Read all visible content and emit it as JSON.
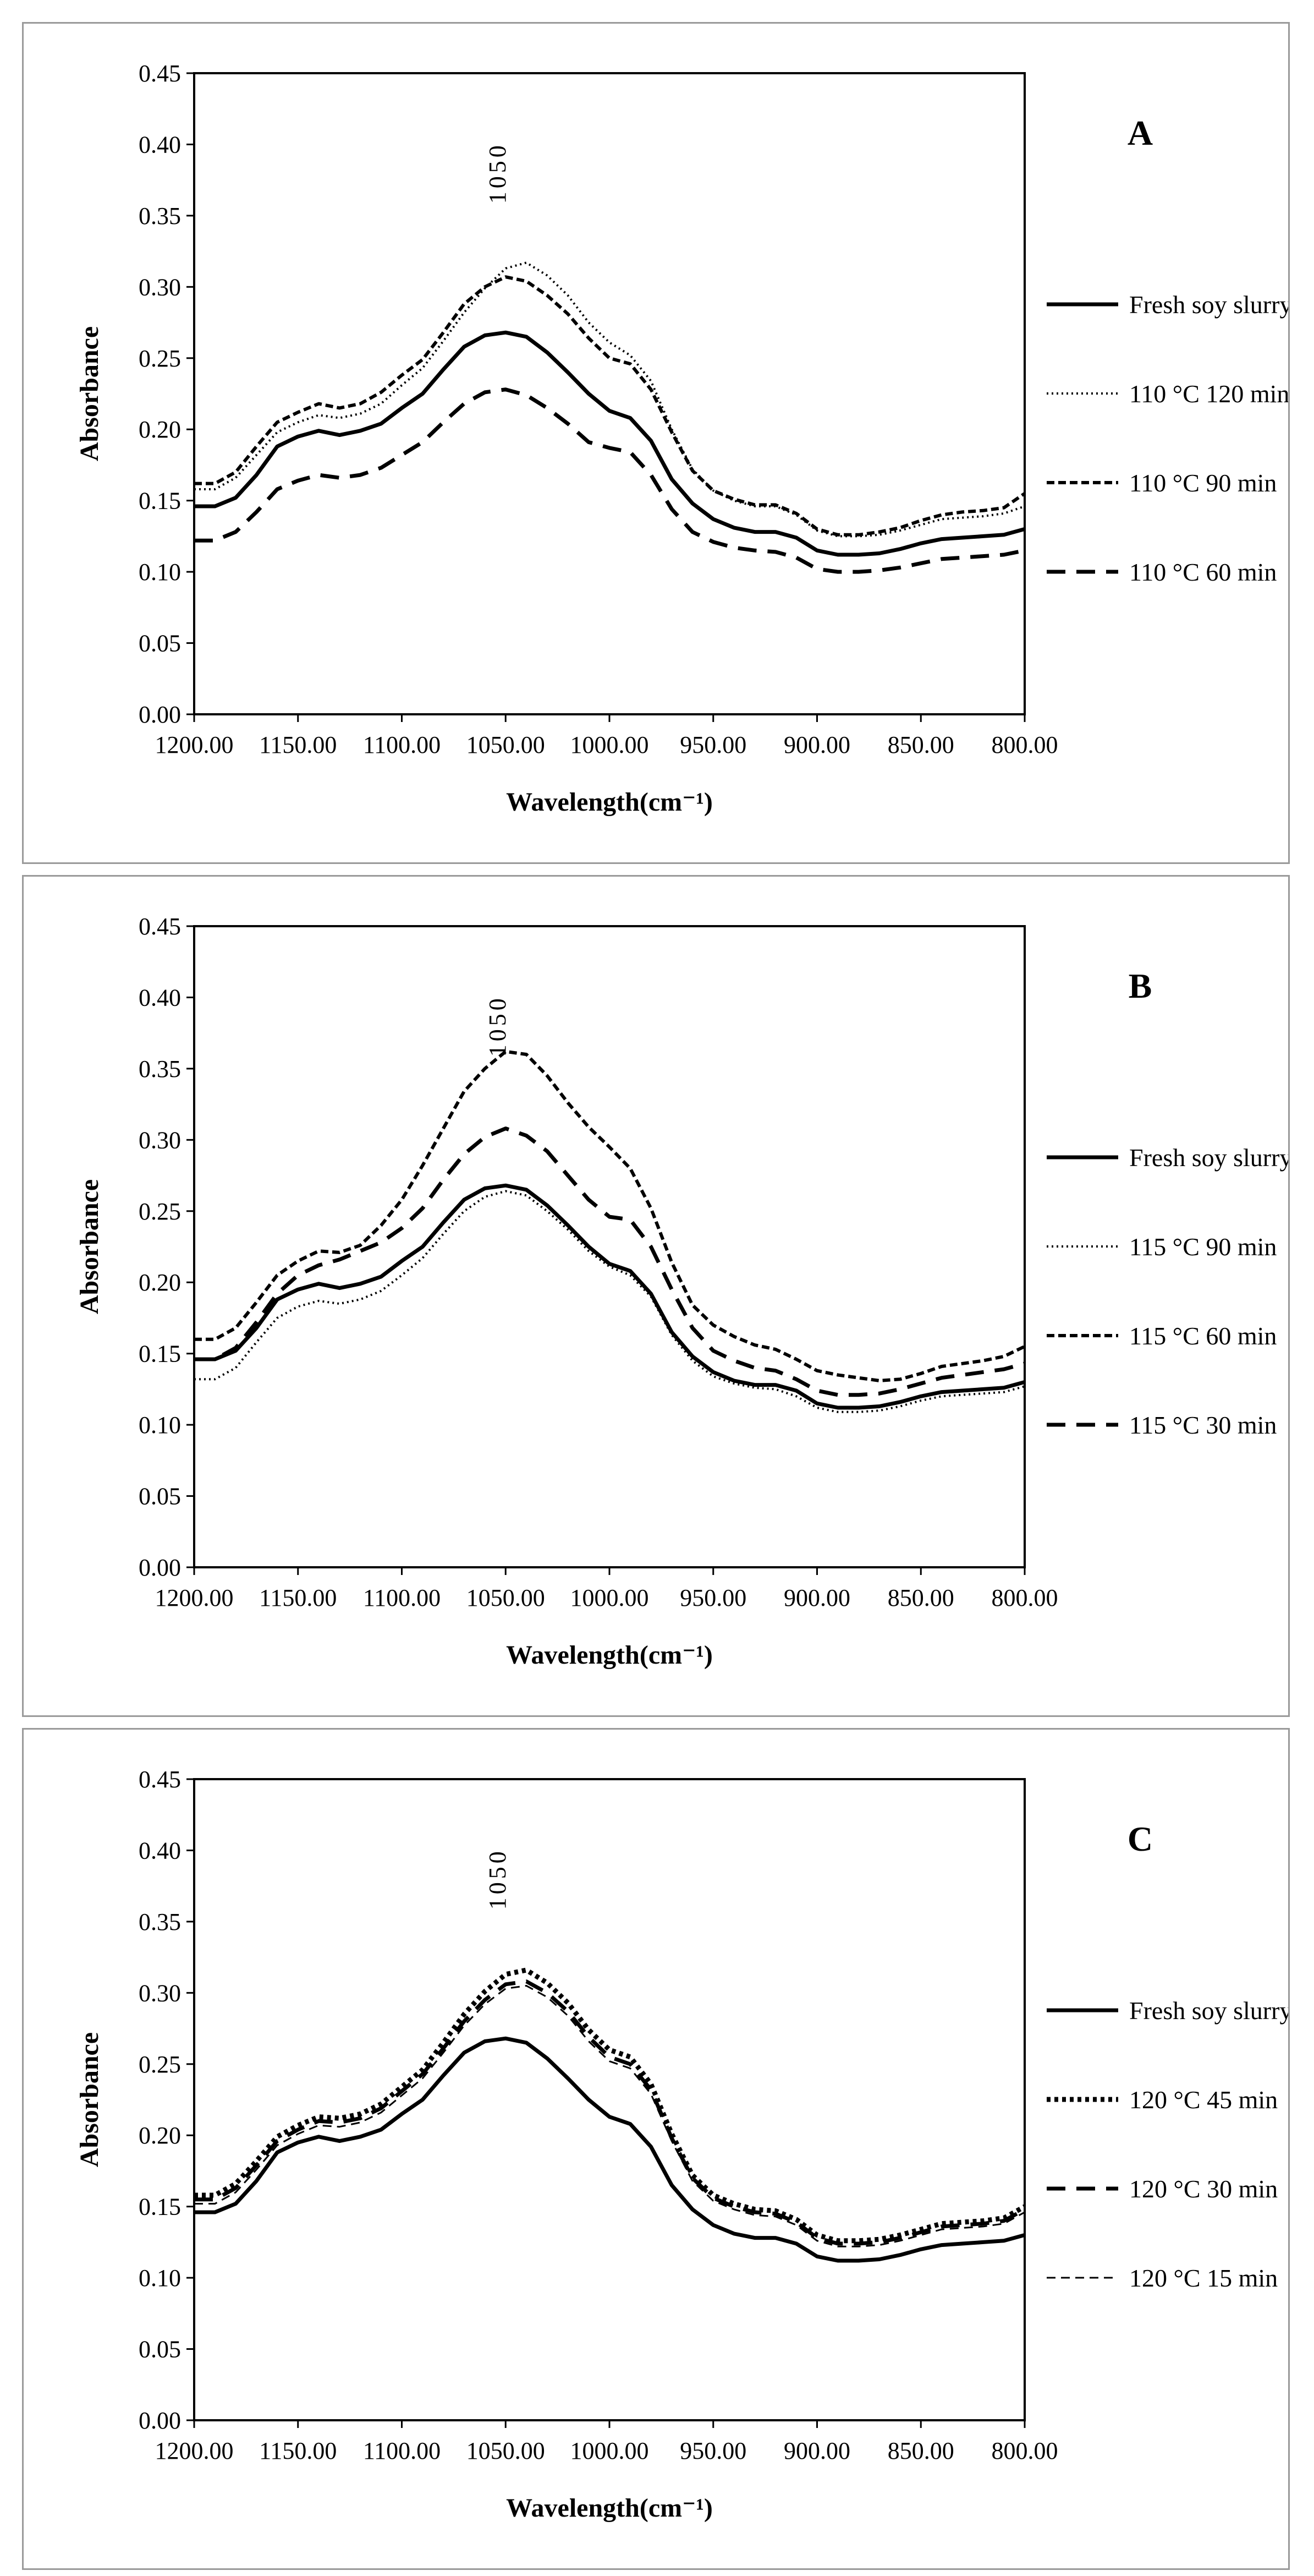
{
  "figure": {
    "panels_order": [
      "A",
      "B",
      "C"
    ]
  },
  "chart_data": [
    {
      "type": "line",
      "panel_label": "A",
      "xlabel": "Wavelength(cm⁻¹)",
      "ylabel": "Absorbance",
      "xlim": [
        1200,
        800
      ],
      "ylim": [
        0,
        0.45
      ],
      "x_reversed": true,
      "x_ticks": [
        1200,
        1150,
        1100,
        1050,
        1000,
        950,
        900,
        850,
        800
      ],
      "x_tick_labels": [
        "1200.00",
        "1150.00",
        "1100.00",
        "1050.00",
        "1000.00",
        "950.00",
        "900.00",
        "850.00",
        "800.00"
      ],
      "y_ticks": [
        0,
        0.05,
        0.1,
        0.15,
        0.2,
        0.25,
        0.3,
        0.35,
        0.4,
        0.45
      ],
      "y_tick_labels": [
        "0.00",
        "0.05",
        "0.10",
        "0.15",
        "0.20",
        "0.25",
        "0.30",
        "0.35",
        "0.40",
        "0.45"
      ],
      "grid": false,
      "legend_position": "right-outside",
      "annotation": {
        "text": "1050",
        "x": 1050,
        "y": 0.38
      },
      "x": [
        1200,
        1190,
        1180,
        1170,
        1160,
        1150,
        1140,
        1130,
        1120,
        1110,
        1100,
        1090,
        1080,
        1070,
        1060,
        1050,
        1040,
        1030,
        1020,
        1010,
        1000,
        990,
        980,
        970,
        960,
        950,
        940,
        930,
        920,
        910,
        900,
        890,
        880,
        870,
        860,
        850,
        840,
        830,
        820,
        810,
        800
      ],
      "series": [
        {
          "name": "Fresh soy slurry",
          "style": "solid",
          "values": [
            0.146,
            0.146,
            0.152,
            0.168,
            0.188,
            0.195,
            0.199,
            0.196,
            0.199,
            0.204,
            0.215,
            0.225,
            0.242,
            0.258,
            0.266,
            0.268,
            0.265,
            0.254,
            0.24,
            0.225,
            0.213,
            0.208,
            0.192,
            0.165,
            0.148,
            0.137,
            0.131,
            0.128,
            0.128,
            0.124,
            0.115,
            0.112,
            0.112,
            0.113,
            0.116,
            0.12,
            0.123,
            0.124,
            0.125,
            0.126,
            0.13
          ]
        },
        {
          "name": "110 °C 120 min",
          "style": "dotted",
          "values": [
            0.158,
            0.158,
            0.166,
            0.182,
            0.198,
            0.205,
            0.21,
            0.208,
            0.211,
            0.218,
            0.231,
            0.243,
            0.262,
            0.282,
            0.299,
            0.313,
            0.317,
            0.308,
            0.294,
            0.275,
            0.261,
            0.252,
            0.234,
            0.2,
            0.172,
            0.157,
            0.15,
            0.146,
            0.146,
            0.14,
            0.129,
            0.125,
            0.125,
            0.126,
            0.129,
            0.133,
            0.137,
            0.138,
            0.139,
            0.141,
            0.146
          ]
        },
        {
          "name": "110 °C 90 min",
          "style": "short-dash",
          "values": [
            0.162,
            0.162,
            0.17,
            0.188,
            0.205,
            0.212,
            0.218,
            0.215,
            0.218,
            0.226,
            0.238,
            0.249,
            0.268,
            0.288,
            0.3,
            0.307,
            0.304,
            0.294,
            0.281,
            0.264,
            0.25,
            0.246,
            0.228,
            0.198,
            0.171,
            0.157,
            0.151,
            0.147,
            0.147,
            0.141,
            0.13,
            0.126,
            0.126,
            0.128,
            0.131,
            0.136,
            0.14,
            0.142,
            0.143,
            0.145,
            0.155
          ]
        },
        {
          "name": "110 °C 60 min",
          "style": "long-dash",
          "values": [
            0.122,
            0.122,
            0.128,
            0.142,
            0.158,
            0.164,
            0.168,
            0.166,
            0.168,
            0.173,
            0.182,
            0.191,
            0.205,
            0.218,
            0.226,
            0.228,
            0.224,
            0.215,
            0.204,
            0.191,
            0.187,
            0.184,
            0.168,
            0.144,
            0.128,
            0.121,
            0.117,
            0.115,
            0.114,
            0.11,
            0.102,
            0.1,
            0.1,
            0.101,
            0.103,
            0.106,
            0.109,
            0.11,
            0.111,
            0.112,
            0.115
          ]
        }
      ]
    },
    {
      "type": "line",
      "panel_label": "B",
      "xlabel": "Wavelength(cm⁻¹)",
      "ylabel": "Absorbance",
      "xlim": [
        1200,
        800
      ],
      "ylim": [
        0,
        0.45
      ],
      "x_reversed": true,
      "x_ticks": [
        1200,
        1150,
        1100,
        1050,
        1000,
        950,
        900,
        850,
        800
      ],
      "x_tick_labels": [
        "1200.00",
        "1150.00",
        "1100.00",
        "1050.00",
        "1000.00",
        "950.00",
        "900.00",
        "850.00",
        "800.00"
      ],
      "y_ticks": [
        0,
        0.05,
        0.1,
        0.15,
        0.2,
        0.25,
        0.3,
        0.35,
        0.4,
        0.45
      ],
      "y_tick_labels": [
        "0.00",
        "0.05",
        "0.10",
        "0.15",
        "0.20",
        "0.25",
        "0.30",
        "0.35",
        "0.40",
        "0.45"
      ],
      "grid": false,
      "legend_position": "right-outside",
      "annotation": {
        "text": "1050",
        "x": 1050,
        "y": 0.38
      },
      "x": [
        1200,
        1190,
        1180,
        1170,
        1160,
        1150,
        1140,
        1130,
        1120,
        1110,
        1100,
        1090,
        1080,
        1070,
        1060,
        1050,
        1040,
        1030,
        1020,
        1010,
        1000,
        990,
        980,
        970,
        960,
        950,
        940,
        930,
        920,
        910,
        900,
        890,
        880,
        870,
        860,
        850,
        840,
        830,
        820,
        810,
        800
      ],
      "series": [
        {
          "name": "Fresh soy slurry",
          "style": "solid",
          "values": [
            0.146,
            0.146,
            0.152,
            0.168,
            0.188,
            0.195,
            0.199,
            0.196,
            0.199,
            0.204,
            0.215,
            0.225,
            0.242,
            0.258,
            0.266,
            0.268,
            0.265,
            0.254,
            0.24,
            0.225,
            0.213,
            0.208,
            0.192,
            0.165,
            0.148,
            0.137,
            0.131,
            0.128,
            0.128,
            0.124,
            0.115,
            0.112,
            0.112,
            0.113,
            0.116,
            0.12,
            0.123,
            0.124,
            0.125,
            0.126,
            0.13
          ]
        },
        {
          "name": "115 °C 90 min",
          "style": "dotted",
          "values": [
            0.132,
            0.132,
            0.14,
            0.158,
            0.175,
            0.183,
            0.187,
            0.185,
            0.188,
            0.194,
            0.205,
            0.217,
            0.234,
            0.25,
            0.26,
            0.264,
            0.261,
            0.25,
            0.237,
            0.222,
            0.211,
            0.205,
            0.19,
            0.163,
            0.145,
            0.134,
            0.129,
            0.126,
            0.125,
            0.12,
            0.112,
            0.109,
            0.109,
            0.11,
            0.113,
            0.117,
            0.12,
            0.121,
            0.122,
            0.123,
            0.127
          ]
        },
        {
          "name": "115 °C 60 min",
          "style": "short-dash",
          "values": [
            0.16,
            0.16,
            0.168,
            0.186,
            0.205,
            0.215,
            0.222,
            0.221,
            0.226,
            0.24,
            0.258,
            0.282,
            0.308,
            0.334,
            0.35,
            0.362,
            0.36,
            0.345,
            0.326,
            0.309,
            0.295,
            0.28,
            0.252,
            0.214,
            0.184,
            0.17,
            0.162,
            0.156,
            0.153,
            0.146,
            0.138,
            0.135,
            0.133,
            0.131,
            0.132,
            0.136,
            0.141,
            0.143,
            0.145,
            0.148,
            0.155
          ]
        },
        {
          "name": "115 °C 30 min",
          "style": "long-dash",
          "values": [
            0.146,
            0.146,
            0.154,
            0.172,
            0.192,
            0.205,
            0.212,
            0.216,
            0.222,
            0.228,
            0.238,
            0.252,
            0.272,
            0.29,
            0.302,
            0.308,
            0.303,
            0.292,
            0.275,
            0.258,
            0.246,
            0.244,
            0.225,
            0.195,
            0.168,
            0.152,
            0.145,
            0.14,
            0.138,
            0.132,
            0.124,
            0.121,
            0.121,
            0.122,
            0.125,
            0.129,
            0.133,
            0.135,
            0.137,
            0.139,
            0.143
          ]
        }
      ]
    },
    {
      "type": "line",
      "panel_label": "C",
      "xlabel": "Wavelength(cm⁻¹)",
      "ylabel": "Absorbance",
      "xlim": [
        1200,
        800
      ],
      "ylim": [
        0,
        0.45
      ],
      "x_reversed": true,
      "x_ticks": [
        1200,
        1150,
        1100,
        1050,
        1000,
        950,
        900,
        850,
        800
      ],
      "x_tick_labels": [
        "1200.00",
        "1150.00",
        "1100.00",
        "1050.00",
        "1000.00",
        "950.00",
        "900.00",
        "850.00",
        "800.00"
      ],
      "y_ticks": [
        0,
        0.05,
        0.1,
        0.15,
        0.2,
        0.25,
        0.3,
        0.35,
        0.4,
        0.45
      ],
      "y_tick_labels": [
        "0.00",
        "0.05",
        "0.10",
        "0.15",
        "0.20",
        "0.25",
        "0.30",
        "0.35",
        "0.40",
        "0.45"
      ],
      "grid": false,
      "legend_position": "right-outside",
      "annotation": {
        "text": "1050",
        "x": 1050,
        "y": 0.38
      },
      "x": [
        1200,
        1190,
        1180,
        1170,
        1160,
        1150,
        1140,
        1130,
        1120,
        1110,
        1100,
        1090,
        1080,
        1070,
        1060,
        1050,
        1040,
        1030,
        1020,
        1010,
        1000,
        990,
        980,
        970,
        960,
        950,
        940,
        930,
        920,
        910,
        900,
        890,
        880,
        870,
        860,
        850,
        840,
        830,
        820,
        810,
        800
      ],
      "series": [
        {
          "name": "Fresh soy slurry",
          "style": "solid",
          "values": [
            0.146,
            0.146,
            0.152,
            0.168,
            0.188,
            0.195,
            0.199,
            0.196,
            0.199,
            0.204,
            0.215,
            0.225,
            0.242,
            0.258,
            0.266,
            0.268,
            0.265,
            0.254,
            0.24,
            0.225,
            0.213,
            0.208,
            0.192,
            0.165,
            0.148,
            0.137,
            0.131,
            0.128,
            0.128,
            0.124,
            0.115,
            0.112,
            0.112,
            0.113,
            0.116,
            0.12,
            0.123,
            0.124,
            0.125,
            0.126,
            0.13
          ]
        },
        {
          "name": "120 °C 45 min",
          "style": "heavy-dotted",
          "values": [
            0.158,
            0.158,
            0.166,
            0.182,
            0.199,
            0.207,
            0.213,
            0.212,
            0.215,
            0.222,
            0.234,
            0.246,
            0.265,
            0.285,
            0.301,
            0.313,
            0.316,
            0.307,
            0.293,
            0.274,
            0.26,
            0.255,
            0.236,
            0.201,
            0.172,
            0.158,
            0.152,
            0.148,
            0.147,
            0.141,
            0.13,
            0.126,
            0.126,
            0.127,
            0.13,
            0.134,
            0.138,
            0.139,
            0.14,
            0.142,
            0.15
          ]
        },
        {
          "name": "120 °C 30 min",
          "style": "long-dash",
          "values": [
            0.155,
            0.155,
            0.163,
            0.179,
            0.196,
            0.204,
            0.21,
            0.209,
            0.212,
            0.219,
            0.231,
            0.243,
            0.261,
            0.28,
            0.295,
            0.306,
            0.308,
            0.3,
            0.287,
            0.269,
            0.255,
            0.25,
            0.232,
            0.198,
            0.17,
            0.156,
            0.15,
            0.146,
            0.145,
            0.139,
            0.128,
            0.124,
            0.124,
            0.125,
            0.128,
            0.132,
            0.136,
            0.137,
            0.138,
            0.14,
            0.148
          ]
        },
        {
          "name": "120 °C 15 min",
          "style": "thin-dash",
          "values": [
            0.152,
            0.152,
            0.16,
            0.176,
            0.193,
            0.201,
            0.207,
            0.206,
            0.209,
            0.216,
            0.228,
            0.24,
            0.258,
            0.277,
            0.292,
            0.303,
            0.305,
            0.297,
            0.284,
            0.266,
            0.252,
            0.247,
            0.229,
            0.196,
            0.168,
            0.154,
            0.148,
            0.144,
            0.143,
            0.137,
            0.126,
            0.122,
            0.122,
            0.123,
            0.126,
            0.13,
            0.134,
            0.135,
            0.136,
            0.138,
            0.146
          ]
        }
      ]
    }
  ]
}
